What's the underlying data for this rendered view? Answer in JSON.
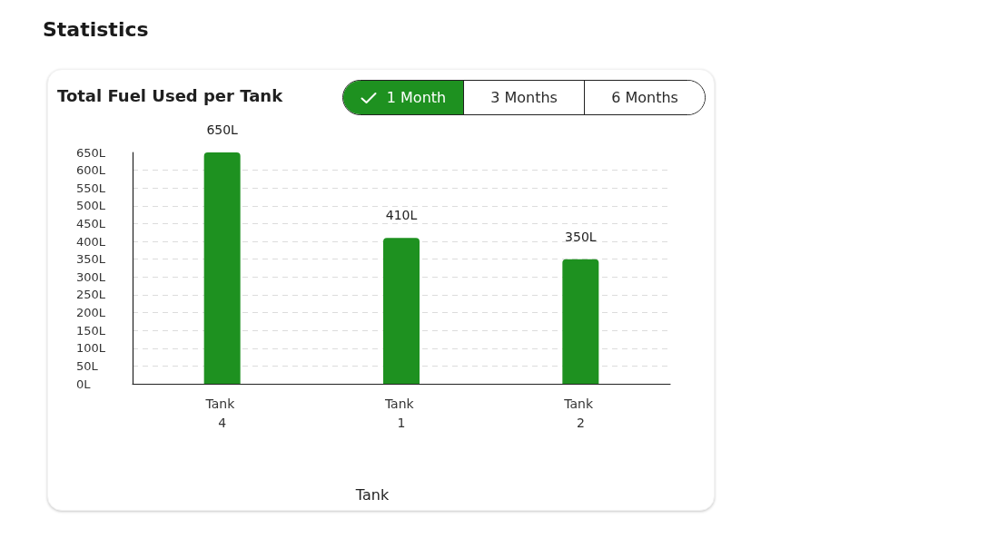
{
  "chart_data": {
    "type": "bar",
    "title": "Total Fuel Used per Tank",
    "xlabel": "Tank",
    "categories": [
      "Tank 4",
      "Tank 1",
      "Tank 2"
    ],
    "values": [
      650,
      410,
      350
    ],
    "value_labels": [
      "650L",
      "410L",
      "350L"
    ],
    "color": "#1e9120",
    "ylim": [
      0,
      650
    ],
    "yticks": [
      {
        "value": 0,
        "label": "0L"
      },
      {
        "value": 50,
        "label": "50L"
      },
      {
        "value": 100,
        "label": "100L"
      },
      {
        "value": 150,
        "label": "150L"
      },
      {
        "value": 200,
        "label": "200L"
      },
      {
        "value": 250,
        "label": "250L"
      },
      {
        "value": 300,
        "label": "300L"
      },
      {
        "value": 350,
        "label": "350L"
      },
      {
        "value": 400,
        "label": "400L"
      },
      {
        "value": 450,
        "label": "450L"
      },
      {
        "value": 500,
        "label": "500L"
      },
      {
        "value": 550,
        "label": "550L"
      },
      {
        "value": 600,
        "label": "600L"
      },
      {
        "value": 650,
        "label": "650L"
      }
    ],
    "grid": "y",
    "annotations": [
      "Statistics",
      "1 Month",
      "3 Months",
      "6 Months"
    ]
  }
}
